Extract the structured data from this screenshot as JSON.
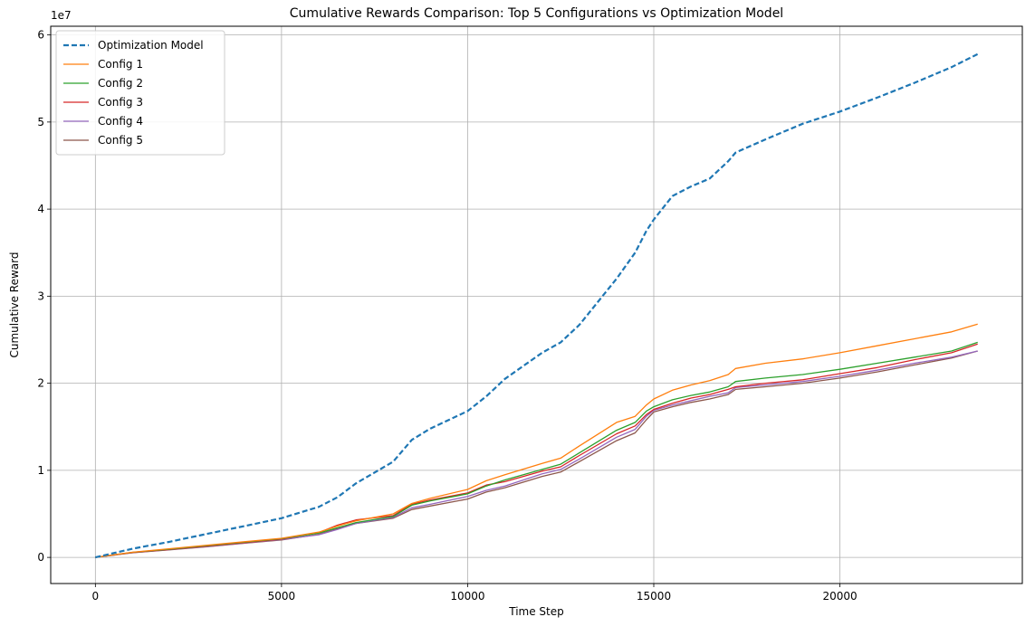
{
  "chart_data": {
    "type": "line",
    "title": "Cumulative Rewards Comparison: Top 5 Configurations vs Optimization Model",
    "xlabel": "Time Step",
    "ylabel": "Cumulative Reward",
    "y_scale_exponent_label": "1e7",
    "xlim": [
      -1200,
      24900
    ],
    "ylim": [
      -3000000,
      61000000
    ],
    "x_ticks": [
      0,
      5000,
      10000,
      15000,
      20000
    ],
    "x_tick_labels": [
      "0",
      "5000",
      "10000",
      "15000",
      "20000"
    ],
    "y_ticks": [
      0,
      10000000,
      20000000,
      30000000,
      40000000,
      50000000,
      60000000
    ],
    "y_tick_labels": [
      "0",
      "1",
      "2",
      "3",
      "4",
      "5",
      "6"
    ],
    "grid": true,
    "legend_position": "top-left",
    "x": [
      0,
      1000,
      2000,
      3000,
      4000,
      5000,
      6000,
      6500,
      7000,
      8000,
      8500,
      9000,
      10000,
      10500,
      11000,
      12000,
      12500,
      13000,
      14000,
      14500,
      14800,
      15000,
      15500,
      16000,
      16500,
      17000,
      17200,
      18000,
      19000,
      20000,
      21000,
      22000,
      23000,
      23700
    ],
    "series": [
      {
        "name": "Optimization Model",
        "color": "#1f77b4",
        "dashed": true,
        "values": [
          0,
          1000000,
          1800000,
          2700000,
          3600000,
          4500000,
          5800000,
          6900000,
          8500000,
          11000000,
          13500000,
          14800000,
          16800000,
          18500000,
          20500000,
          23500000,
          24700000,
          26700000,
          32000000,
          35000000,
          37500000,
          38800000,
          41500000,
          42600000,
          43500000,
          45500000,
          46500000,
          48000000,
          49800000,
          51200000,
          52800000,
          54500000,
          56300000,
          57800000
        ]
      },
      {
        "name": "Config 1",
        "color": "#ff7f0e",
        "dashed": false,
        "values": [
          0,
          600000,
          1000000,
          1400000,
          1800000,
          2200000,
          2900000,
          3600000,
          4200000,
          5000000,
          6200000,
          6800000,
          7800000,
          8800000,
          9500000,
          10800000,
          11400000,
          12800000,
          15500000,
          16200000,
          17500000,
          18200000,
          19200000,
          19800000,
          20300000,
          21000000,
          21700000,
          22300000,
          22800000,
          23500000,
          24300000,
          25100000,
          25900000,
          26800000
        ]
      },
      {
        "name": "Config 2",
        "color": "#2ca02c",
        "dashed": false,
        "values": [
          0,
          580000,
          950000,
          1350000,
          1750000,
          2150000,
          2800000,
          3400000,
          4000000,
          4700000,
          6000000,
          6500000,
          7300000,
          8200000,
          8900000,
          10100000,
          10700000,
          12000000,
          14600000,
          15500000,
          16800000,
          17300000,
          18100000,
          18600000,
          19000000,
          19600000,
          20200000,
          20600000,
          21000000,
          21600000,
          22300000,
          23000000,
          23700000,
          24700000
        ]
      },
      {
        "name": "Config 3",
        "color": "#d62728",
        "dashed": false,
        "values": [
          0,
          560000,
          920000,
          1300000,
          1700000,
          2100000,
          2850000,
          3700000,
          4300000,
          4800000,
          6100000,
          6600000,
          7400000,
          8300000,
          8700000,
          9900000,
          10400000,
          11700000,
          14200000,
          15100000,
          16400000,
          17000000,
          17700000,
          18300000,
          18700000,
          19300000,
          19600000,
          20000000,
          20400000,
          21100000,
          21800000,
          22700000,
          23500000,
          24500000
        ]
      },
      {
        "name": "Config 4",
        "color": "#9467bd",
        "dashed": false,
        "values": [
          0,
          540000,
          900000,
          1250000,
          1650000,
          2050000,
          2600000,
          3200000,
          3900000,
          4600000,
          5700000,
          6100000,
          7000000,
          7700000,
          8200000,
          9600000,
          10100000,
          11300000,
          13800000,
          14700000,
          16200000,
          16900000,
          17500000,
          18000000,
          18500000,
          18900000,
          19500000,
          19800000,
          20200000,
          20800000,
          21500000,
          22300000,
          23000000,
          23700000
        ]
      },
      {
        "name": "Config 5",
        "color": "#8c564b",
        "dashed": false,
        "values": [
          0,
          530000,
          880000,
          1230000,
          1620000,
          2000000,
          2650000,
          3300000,
          3900000,
          4500000,
          5500000,
          5900000,
          6700000,
          7500000,
          8000000,
          9300000,
          9800000,
          11000000,
          13400000,
          14300000,
          15800000,
          16700000,
          17300000,
          17800000,
          18200000,
          18700000,
          19300000,
          19600000,
          20000000,
          20600000,
          21300000,
          22100000,
          22900000,
          23700000
        ]
      }
    ]
  }
}
